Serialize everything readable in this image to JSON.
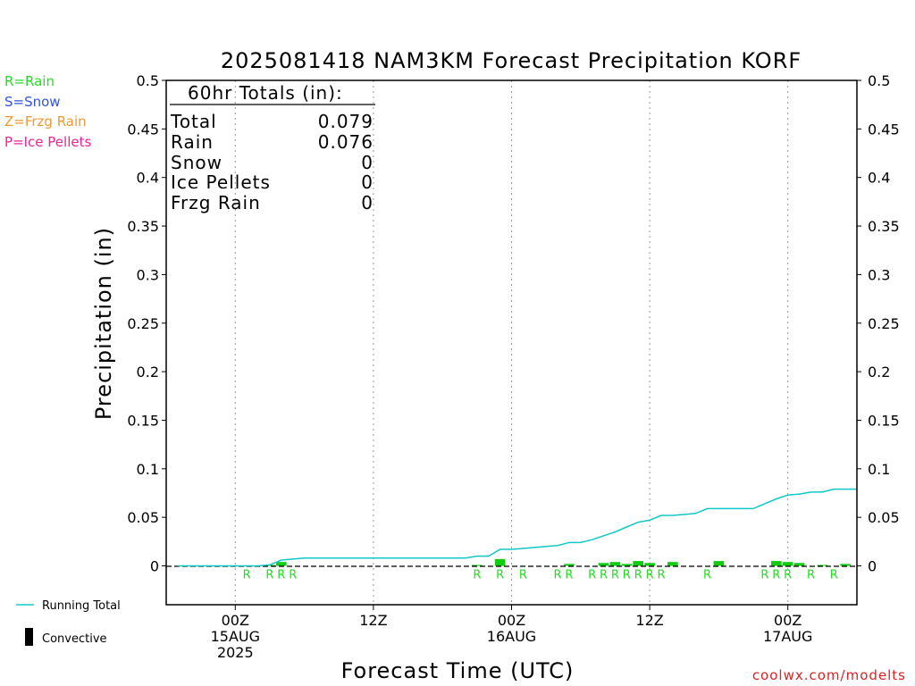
{
  "chart_data": {
    "type": "bar",
    "title": "2025081418 NAM3KM Forecast Precipitation KORF",
    "xlabel": "Forecast Time (UTC)",
    "ylabel": "Precipitation (in)",
    "ylim": [
      -0.04,
      0.5
    ],
    "xlim_hours": [
      -6,
      54
    ],
    "yticks": [
      "0.5",
      "0.45",
      "0.4",
      "0.35",
      "0.3",
      "0.25",
      "0.2",
      "0.15",
      "0.1",
      "0.05",
      "0"
    ],
    "xticks": [
      {
        "hour": 0,
        "line1": "00Z",
        "line2": "15AUG",
        "line3": "2025"
      },
      {
        "hour": 12,
        "line1": "12Z",
        "line2": "",
        "line3": ""
      },
      {
        "hour": 24,
        "line1": "00Z",
        "line2": "16AUG",
        "line3": ""
      },
      {
        "hour": 36,
        "line1": "12Z",
        "line2": "",
        "line3": ""
      },
      {
        "hour": 48,
        "line1": "00Z",
        "line2": "17AUG",
        "line3": ""
      }
    ],
    "grid": "vertical dotted at 00Z/12Z",
    "legend_top": [
      {
        "label": "R=Rain",
        "color": "#22dd22"
      },
      {
        "label": "S=Snow",
        "color": "#3355dd"
      },
      {
        "label": "Z=Frzg Rain",
        "color": "#ee9933"
      },
      {
        "label": "P=Ice Pellets",
        "color": "#ee2299"
      }
    ],
    "legend_bottom": {
      "running_total": "Running Total",
      "convective": "Convective"
    },
    "totals_box": {
      "title": "60hr Totals (in):",
      "rows": [
        {
          "label": "Total",
          "value": "0.079"
        },
        {
          "label": "Rain",
          "value": "0.076"
        },
        {
          "label": "Snow",
          "value": "0"
        },
        {
          "label": "Ice Pellets",
          "value": "0"
        },
        {
          "label": "Frzg Rain",
          "value": "0"
        }
      ]
    },
    "hourly_bars": [
      {
        "hour": 3,
        "value": 0.001
      },
      {
        "hour": 4,
        "value": 0.004
      },
      {
        "hour": 21,
        "value": 0.001
      },
      {
        "hour": 23,
        "value": 0.007
      },
      {
        "hour": 29,
        "value": 0.002
      },
      {
        "hour": 32,
        "value": 0.003
      },
      {
        "hour": 33,
        "value": 0.004
      },
      {
        "hour": 34,
        "value": 0.002
      },
      {
        "hour": 35,
        "value": 0.005
      },
      {
        "hour": 36,
        "value": 0.003
      },
      {
        "hour": 38,
        "value": 0.004
      },
      {
        "hour": 42,
        "value": 0.005
      },
      {
        "hour": 47,
        "value": 0.005
      },
      {
        "hour": 48,
        "value": 0.004
      },
      {
        "hour": 49,
        "value": 0.003
      },
      {
        "hour": 51,
        "value": 0.001
      },
      {
        "hour": 53,
        "value": 0.002
      }
    ],
    "ptype_markers": [
      {
        "hour": 1,
        "text": "R"
      },
      {
        "hour": 3,
        "text": "R"
      },
      {
        "hour": 4,
        "text": "R"
      },
      {
        "hour": 5,
        "text": "R"
      },
      {
        "hour": 21,
        "text": "R"
      },
      {
        "hour": 23,
        "text": "R"
      },
      {
        "hour": 25,
        "text": "R"
      },
      {
        "hour": 28,
        "text": "R"
      },
      {
        "hour": 29,
        "text": "R"
      },
      {
        "hour": 31,
        "text": "R"
      },
      {
        "hour": 32,
        "text": "R"
      },
      {
        "hour": 33,
        "text": "R"
      },
      {
        "hour": 34,
        "text": "R"
      },
      {
        "hour": 35,
        "text": "R"
      },
      {
        "hour": 36,
        "text": "R"
      },
      {
        "hour": 37,
        "text": "R"
      },
      {
        "hour": 41,
        "text": "R"
      },
      {
        "hour": 46,
        "text": "R"
      },
      {
        "hour": 47,
        "text": "R"
      },
      {
        "hour": 48,
        "text": "R"
      },
      {
        "hour": 50,
        "text": "R"
      },
      {
        "hour": 52,
        "text": "R"
      }
    ],
    "running_total": [
      {
        "hour": -5,
        "value": 0
      },
      {
        "hour": 2,
        "value": 0
      },
      {
        "hour": 3,
        "value": 0.001
      },
      {
        "hour": 4,
        "value": 0.006
      },
      {
        "hour": 5,
        "value": 0.007
      },
      {
        "hour": 6,
        "value": 0.008
      },
      {
        "hour": 20,
        "value": 0.008
      },
      {
        "hour": 21,
        "value": 0.01
      },
      {
        "hour": 22,
        "value": 0.01
      },
      {
        "hour": 23,
        "value": 0.017
      },
      {
        "hour": 24,
        "value": 0.017
      },
      {
        "hour": 25,
        "value": 0.018
      },
      {
        "hour": 27,
        "value": 0.02
      },
      {
        "hour": 28,
        "value": 0.021
      },
      {
        "hour": 29,
        "value": 0.024
      },
      {
        "hour": 30,
        "value": 0.024
      },
      {
        "hour": 31,
        "value": 0.027
      },
      {
        "hour": 32,
        "value": 0.031
      },
      {
        "hour": 33,
        "value": 0.035
      },
      {
        "hour": 34,
        "value": 0.04
      },
      {
        "hour": 35,
        "value": 0.045
      },
      {
        "hour": 36,
        "value": 0.047
      },
      {
        "hour": 37,
        "value": 0.052
      },
      {
        "hour": 38,
        "value": 0.052
      },
      {
        "hour": 40,
        "value": 0.054
      },
      {
        "hour": 41,
        "value": 0.059
      },
      {
        "hour": 45,
        "value": 0.059
      },
      {
        "hour": 46,
        "value": 0.064
      },
      {
        "hour": 47,
        "value": 0.069
      },
      {
        "hour": 48,
        "value": 0.073
      },
      {
        "hour": 49,
        "value": 0.074
      },
      {
        "hour": 50,
        "value": 0.076
      },
      {
        "hour": 51,
        "value": 0.076
      },
      {
        "hour": 52,
        "value": 0.079
      },
      {
        "hour": 54,
        "value": 0.079
      }
    ],
    "colors": {
      "bar": "#11cc11",
      "line": "#11c8c8",
      "rain_text": "#22dd22"
    },
    "credit": "coolwx.com/modelts"
  }
}
